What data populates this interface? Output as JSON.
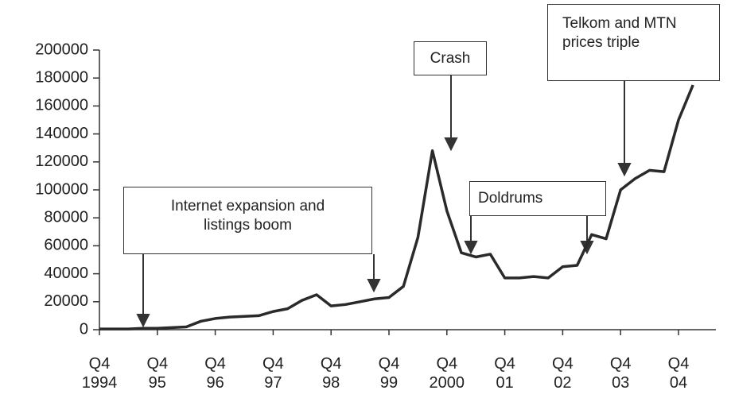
{
  "chart_data": {
    "type": "line",
    "categories": [
      "Q4\n1994",
      null,
      null,
      null,
      "Q4\n95",
      null,
      null,
      null,
      "Q4\n96",
      null,
      null,
      null,
      "Q4\n97",
      null,
      null,
      null,
      "Q4\n98",
      null,
      null,
      null,
      "Q4\n99",
      null,
      null,
      null,
      "Q4\n2000",
      null,
      null,
      null,
      "Q4\n01",
      null,
      null,
      null,
      "Q4\n02",
      null,
      null,
      null,
      "Q4\n03",
      null,
      null,
      null,
      "Q4\n04",
      null
    ],
    "values": [
      500,
      500,
      500,
      1000,
      1000,
      1500,
      2000,
      6000,
      8000,
      9000,
      9500,
      10000,
      13000,
      15000,
      21000,
      25000,
      17000,
      18000,
      20000,
      22000,
      23000,
      31000,
      66000,
      128000,
      85000,
      55000,
      52000,
      54000,
      37000,
      37000,
      38000,
      37000,
      45000,
      46000,
      68000,
      65000,
      100000,
      108000,
      114000,
      113000,
      150000,
      175000
    ],
    "color": "#2a2a2a",
    "ylim": [
      0,
      200000
    ],
    "yticks": [
      0,
      20000,
      40000,
      60000,
      80000,
      100000,
      120000,
      140000,
      160000,
      180000,
      200000
    ],
    "grid": false,
    "annotations": [
      "Internet expansion and\nlistings boom",
      "Crash",
      "Doldrums",
      "Telkom and MTN\nprices triple"
    ]
  }
}
